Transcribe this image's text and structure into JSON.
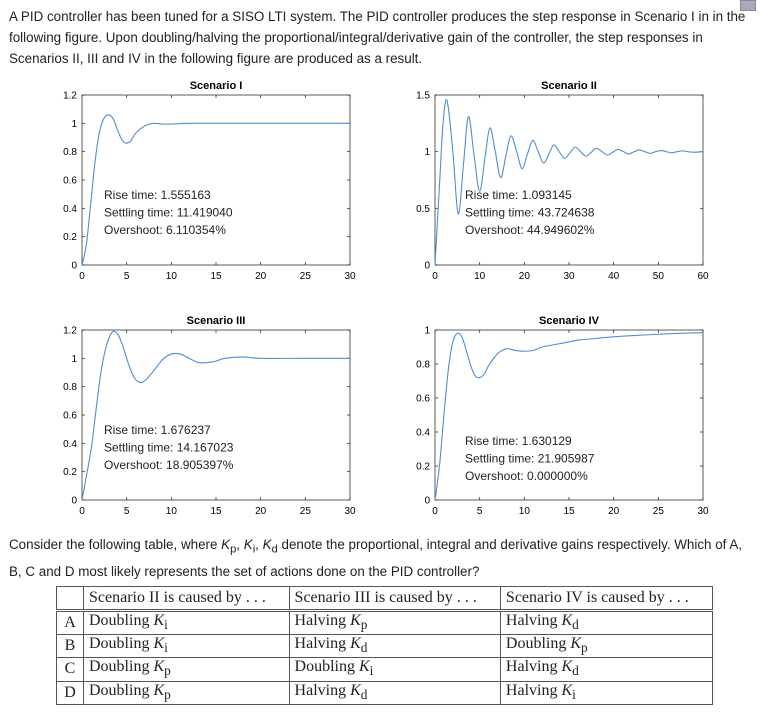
{
  "intro": "A PID controller has been tuned for a SISO LTI system. The PID controller produces the step response in Scenario I in in the following figure. Upon doubling/halving the proportional/integral/derivative gain of the controller, the step responses in Scenarios II, III and IV in the following figure are produced as a result.",
  "question": {
    "part1": "Consider the following table, where ",
    "kp": "K",
    "kp_sub": "p",
    "ki": "K",
    "ki_sub": "i",
    "kd": "K",
    "kd_sub": "d",
    "part2": " denote the proportional, integral and derivative gains respectively. Which of A, B, C and D most likely represents the set of actions done on the PID controller?"
  },
  "table": {
    "headers": [
      "",
      "Scenario II is caused by . . .",
      "Scenario III is caused by . . .",
      "Scenario IV is caused by . . ."
    ],
    "rows": [
      {
        "label": "A",
        "cells": [
          [
            "Doubling ",
            "K",
            "i"
          ],
          [
            "Halving ",
            "K",
            "p"
          ],
          [
            "Halving ",
            "K",
            "d"
          ]
        ]
      },
      {
        "label": "B",
        "cells": [
          [
            "Doubling ",
            "K",
            "i"
          ],
          [
            "Halving ",
            "K",
            "d"
          ],
          [
            "Doubling ",
            "K",
            "p"
          ]
        ]
      },
      {
        "label": "C",
        "cells": [
          [
            "Doubling ",
            "K",
            "p"
          ],
          [
            "Doubling ",
            "K",
            "i"
          ],
          [
            "Halving ",
            "K",
            "d"
          ]
        ]
      },
      {
        "label": "D",
        "cells": [
          [
            "Doubling ",
            "K",
            "p"
          ],
          [
            "Halving ",
            "K",
            "d"
          ],
          [
            "Halving ",
            "K",
            "i"
          ]
        ]
      }
    ]
  },
  "chart_data": [
    {
      "type": "line",
      "title": "Scenario I",
      "xlim": [
        0,
        30
      ],
      "ylim": [
        0,
        1.2
      ],
      "xticks": [
        0,
        5,
        10,
        15,
        20,
        25,
        30
      ],
      "yticks": [
        0,
        0.2,
        0.4,
        0.6,
        0.8,
        1,
        1.2
      ],
      "color": "#4f8fd0",
      "annotations": [
        "Rise time: 1.555163",
        "Settling time: 11.419040",
        "Overshoot: 6.110354%"
      ],
      "x": [
        0,
        0.5,
        1,
        1.5,
        2,
        2.5,
        3,
        3.5,
        4,
        4.5,
        5,
        5.5,
        6,
        7,
        8,
        9,
        10,
        12,
        15,
        20,
        30
      ],
      "y": [
        0,
        0.15,
        0.45,
        0.75,
        0.95,
        1.04,
        1.06,
        1.03,
        0.95,
        0.88,
        0.86,
        0.88,
        0.93,
        0.98,
        1.0,
        0.995,
        0.995,
        1.0,
        1.0,
        1.0,
        1.0
      ]
    },
    {
      "type": "line",
      "title": "Scenario II",
      "xlim": [
        0,
        60
      ],
      "ylim": [
        0,
        1.5
      ],
      "xticks": [
        0,
        10,
        20,
        30,
        40,
        50,
        60
      ],
      "yticks": [
        0,
        0.5,
        1,
        1.5
      ],
      "color": "#4f8fd0",
      "annotations": [
        "Rise time: 1.093145",
        "Settling time: 43.724638",
        "Overshoot: 44.949602%"
      ],
      "x": [
        0,
        1,
        1.8,
        2.7,
        4,
        5.2,
        6.4,
        7.5,
        8.8,
        10,
        11.2,
        12.3,
        13.5,
        14.7,
        15.9,
        17,
        18.3,
        19.5,
        20.7,
        21.9,
        23.1,
        24.3,
        25.5,
        26.6,
        27.8,
        29,
        30.2,
        31.4,
        32.6,
        33.8,
        35,
        36.1,
        37.4,
        38.6,
        39.8,
        41,
        42.2,
        43.4,
        44.6,
        45.8,
        47,
        48.2,
        49.4,
        50.6,
        51.8,
        53,
        54.2,
        55.4,
        56.6,
        57.8,
        60
      ],
      "y": [
        0,
        0.7,
        1.25,
        1.45,
        1.0,
        0.45,
        0.9,
        1.31,
        0.95,
        0.65,
        0.95,
        1.21,
        1.0,
        0.77,
        0.97,
        1.14,
        1.0,
        0.85,
        0.98,
        1.1,
        1.0,
        0.9,
        0.98,
        1.06,
        1.0,
        0.94,
        0.99,
        1.04,
        1.0,
        0.96,
        0.995,
        1.03,
        1.0,
        0.97,
        0.995,
        1.02,
        1.0,
        0.98,
        1.0,
        1.015,
        1.0,
        0.985,
        1.0,
        1.01,
        1.0,
        0.99,
        1.0,
        1.007,
        1.0,
        0.995,
        1.0
      ]
    },
    {
      "type": "line",
      "title": "Scenario III",
      "xlim": [
        0,
        30
      ],
      "ylim": [
        0,
        1.2
      ],
      "xticks": [
        0,
        5,
        10,
        15,
        20,
        25,
        30
      ],
      "yticks": [
        0,
        0.2,
        0.4,
        0.6,
        0.8,
        1,
        1.2
      ],
      "color": "#4f8fd0",
      "annotations": [
        "Rise time: 1.676237",
        "Settling time: 14.167023",
        "Overshoot: 18.905397%"
      ],
      "x": [
        0,
        1,
        1.5,
        2,
        2.5,
        3,
        3.5,
        4,
        4.5,
        5,
        5.5,
        6,
        6.5,
        7,
        8,
        9,
        10,
        11,
        12,
        13,
        14,
        15,
        16,
        18,
        20,
        25,
        30
      ],
      "y": [
        0,
        0.35,
        0.6,
        0.85,
        1.03,
        1.14,
        1.19,
        1.17,
        1.1,
        1.0,
        0.91,
        0.85,
        0.83,
        0.84,
        0.91,
        0.99,
        1.03,
        1.03,
        1.0,
        0.97,
        0.97,
        0.98,
        1.0,
        1.01,
        1.0,
        1.0,
        1.0
      ]
    },
    {
      "type": "line",
      "title": "Scenario IV",
      "xlim": [
        0,
        30
      ],
      "ylim": [
        0,
        1
      ],
      "xticks": [
        0,
        5,
        10,
        15,
        20,
        25,
        30
      ],
      "yticks": [
        0,
        0.2,
        0.4,
        0.6,
        0.8,
        1
      ],
      "color": "#4f8fd0",
      "annotations": [
        "Rise time: 1.630129",
        "Settling time: 21.905987",
        "Overshoot: 0.000000%"
      ],
      "x": [
        0,
        0.5,
        1,
        1.5,
        2,
        2.5,
        3,
        3.5,
        4,
        4.5,
        5,
        5.5,
        6,
        7,
        8,
        9,
        10,
        11,
        12,
        14,
        16,
        18,
        20,
        25,
        30
      ],
      "y": [
        0,
        0.2,
        0.5,
        0.77,
        0.93,
        0.98,
        0.96,
        0.88,
        0.79,
        0.73,
        0.72,
        0.74,
        0.79,
        0.86,
        0.89,
        0.88,
        0.875,
        0.88,
        0.9,
        0.92,
        0.94,
        0.95,
        0.96,
        0.975,
        0.985
      ]
    }
  ]
}
